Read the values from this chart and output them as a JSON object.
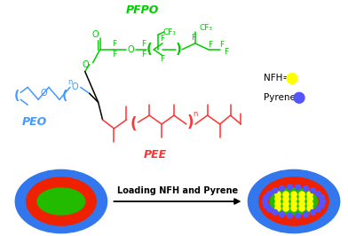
{
  "pfpo_label": "PFPO",
  "peo_label": "PEO",
  "pee_label": "PEE",
  "nfh_label": "NFH=",
  "pyrene_label": "Pyrene=",
  "arrow_label": "Loading NFH and Pyrene",
  "pfpo_color": "#00CC00",
  "peo_color": "#4499FF",
  "pee_color": "#FF3333",
  "nfh_dot_color": "#FFFF00",
  "pyrene_dot_color": "#5555FF",
  "blue_outer": "#3377EE",
  "red_ring": "#EE2200",
  "green_core": "#22BB00",
  "bg_color": "#FFFFFF"
}
